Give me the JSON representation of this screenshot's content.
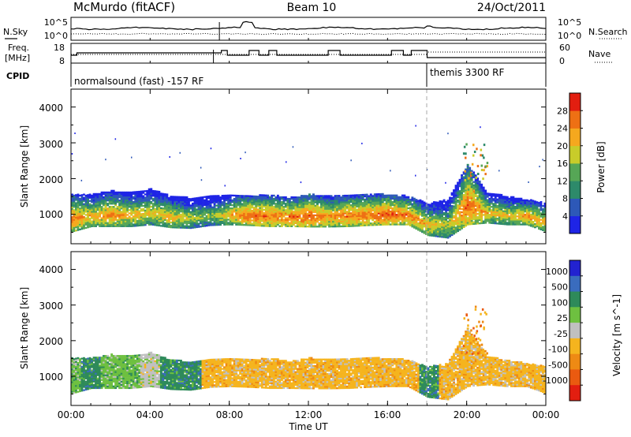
{
  "header": {
    "station": "McMurdo (fitACF)",
    "beam": "Beam 10",
    "date": "24/Oct/2011"
  },
  "noise_panel": {
    "left_label": "N.Sky",
    "left_ticks": [
      "10^5",
      "10^0"
    ],
    "right_label": "N.Search",
    "right_ticks": [
      "10^5",
      "10^0"
    ]
  },
  "freq_panel": {
    "left_label_line1": "Freq.",
    "left_label_line2": "[MHz]",
    "left_ticks": [
      "18",
      "8"
    ],
    "right_label": "Nave",
    "right_ticks": [
      "60",
      "0"
    ]
  },
  "cpid_panel": {
    "label": "CPID",
    "mode1": "normalsound (fast) -157 RF",
    "mode2": "themis 3300 RF"
  },
  "chart_data": [
    {
      "type": "heatmap",
      "name": "power",
      "xlabel": "Time UT",
      "ylabel": "Slant Range [km]",
      "xlim": [
        0,
        24
      ],
      "ylim": [
        180,
        4500
      ],
      "y_ticks": [
        "1000",
        "2000",
        "3000",
        "4000"
      ],
      "colorbar": {
        "label": "Power [dB]",
        "range": [
          0,
          32
        ],
        "tick_labels": [
          "4",
          "8",
          "12",
          "16",
          "20",
          "24",
          "28"
        ],
        "colors": [
          "#1e24e6",
          "#2d58b8",
          "#2d8a6a",
          "#56a656",
          "#c8cc2a",
          "#f5a81e",
          "#ee7014",
          "#e21e10"
        ]
      },
      "echo_band_km": {
        "t_hours": [
          0,
          1,
          2,
          3,
          4,
          5,
          6,
          7,
          8,
          9,
          10,
          11,
          12,
          13,
          14,
          15,
          16,
          17,
          18,
          19,
          20,
          21,
          22,
          23,
          24
        ],
        "bottom": [
          500,
          650,
          650,
          650,
          700,
          620,
          600,
          680,
          700,
          680,
          650,
          650,
          640,
          640,
          650,
          680,
          700,
          700,
          400,
          330,
          700,
          750,
          700,
          700,
          500
        ],
        "top": [
          1550,
          1550,
          1650,
          1600,
          1700,
          1500,
          1450,
          1500,
          1550,
          1500,
          1550,
          1450,
          1550,
          1500,
          1550,
          1550,
          1550,
          1500,
          1300,
          1400,
          2400,
          1600,
          1500,
          1400,
          1300
        ],
        "core_power_db": [
          26,
          22,
          24,
          22,
          20,
          22,
          18,
          16,
          22,
          28,
          26,
          26,
          28,
          24,
          26,
          26,
          28,
          26,
          22,
          18,
          28,
          22,
          20,
          24,
          22
        ]
      }
    },
    {
      "type": "heatmap",
      "name": "velocity",
      "xlabel": "Time UT",
      "ylabel": "Slant Range [km]",
      "xlim": [
        0,
        24
      ],
      "ylim": [
        180,
        4500
      ],
      "y_ticks": [
        "1000",
        "2000",
        "3000",
        "4000"
      ],
      "colorbar": {
        "label": "Velocity [m s^-1]",
        "tick_labels": [
          "1000",
          "500",
          "100",
          "25",
          "-25",
          "-100",
          "-500",
          "-1000"
        ],
        "colors": [
          "#2222d0",
          "#3a6cbe",
          "#2e8a5a",
          "#6ec040",
          "#c0c0c0",
          "#f5b41e",
          "#ee8a14",
          "#ea5a10",
          "#e21e10"
        ]
      },
      "velocity_class_by_hour": [
        "25",
        "100",
        "25",
        "25",
        "-25",
        "100",
        "100",
        "-100",
        "-100",
        "-100",
        "-100",
        "-100",
        "-100",
        "-100",
        "-100",
        "-100",
        "-100",
        "-100",
        "100",
        "-100",
        "-100",
        "-100",
        "-100",
        "-100",
        "-100"
      ]
    }
  ],
  "time_axis": {
    "label": "Time UT",
    "ticks": [
      "00:00",
      "04:00",
      "08:00",
      "12:00",
      "16:00",
      "20:00",
      "00:00"
    ]
  }
}
